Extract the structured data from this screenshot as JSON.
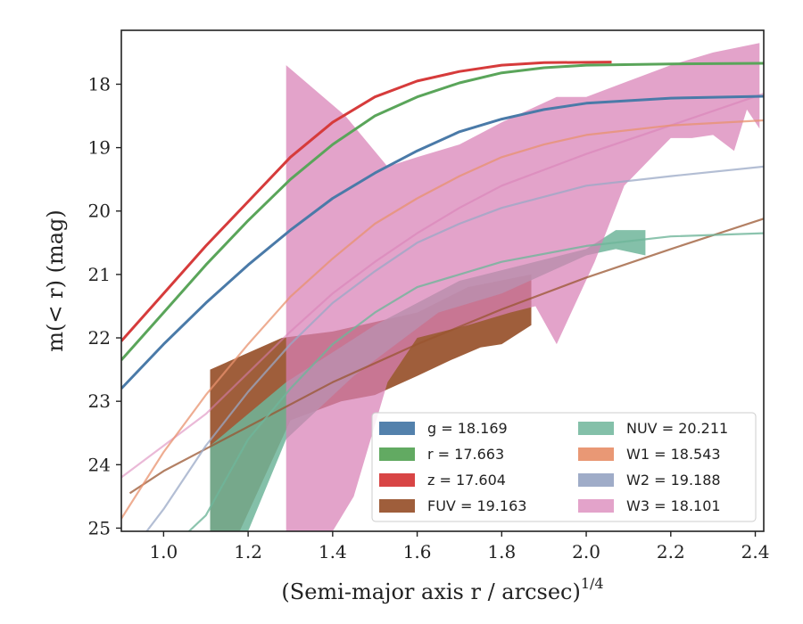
{
  "chart_data": {
    "type": "line",
    "xlabel_main": "(Semi-major axis r / arcsec)",
    "xlabel_sup": "1/4",
    "ylabel": "m(< r) (mag)",
    "xlim": [
      0.9,
      2.42
    ],
    "ylim": [
      25.05,
      17.15
    ],
    "y_inverted": true,
    "grid": false,
    "legend_position": "lower-right",
    "xticks": [
      1.0,
      1.2,
      1.4,
      1.6,
      1.8,
      2.0,
      2.2,
      2.4
    ],
    "xtick_labels": [
      "1.0",
      "1.2",
      "1.4",
      "1.6",
      "1.8",
      "2.0",
      "2.2",
      "2.4"
    ],
    "yticks": [
      18,
      19,
      20,
      21,
      22,
      23,
      24,
      25
    ],
    "ytick_labels": [
      "18",
      "19",
      "20",
      "21",
      "22",
      "23",
      "24",
      "25"
    ],
    "series": [
      {
        "name": "g = 18.169",
        "key": "g",
        "color": "#4a7aa8",
        "curve_opacity": 1.0,
        "curve": [
          [
            0.9,
            22.8
          ],
          [
            1.0,
            22.1
          ],
          [
            1.1,
            21.45
          ],
          [
            1.2,
            20.85
          ],
          [
            1.3,
            20.3
          ],
          [
            1.4,
            19.8
          ],
          [
            1.5,
            19.4
          ],
          [
            1.6,
            19.05
          ],
          [
            1.7,
            18.75
          ],
          [
            1.8,
            18.55
          ],
          [
            1.9,
            18.4
          ],
          [
            2.0,
            18.3
          ],
          [
            2.2,
            18.22
          ],
          [
            2.42,
            18.19
          ]
        ]
      },
      {
        "name": "r = 17.663",
        "key": "r",
        "color": "#5aa55a",
        "curve_opacity": 1.0,
        "curve": [
          [
            0.9,
            22.35
          ],
          [
            1.0,
            21.6
          ],
          [
            1.1,
            20.85
          ],
          [
            1.2,
            20.15
          ],
          [
            1.3,
            19.5
          ],
          [
            1.4,
            18.95
          ],
          [
            1.5,
            18.5
          ],
          [
            1.6,
            18.2
          ],
          [
            1.7,
            17.98
          ],
          [
            1.8,
            17.82
          ],
          [
            1.9,
            17.74
          ],
          [
            2.0,
            17.7
          ],
          [
            2.2,
            17.68
          ],
          [
            2.42,
            17.67
          ]
        ]
      },
      {
        "name": "z = 17.604",
        "key": "z",
        "color": "#d63b3b",
        "curve_opacity": 1.0,
        "curve": [
          [
            0.9,
            22.05
          ],
          [
            1.0,
            21.3
          ],
          [
            1.1,
            20.55
          ],
          [
            1.2,
            19.85
          ],
          [
            1.3,
            19.15
          ],
          [
            1.4,
            18.6
          ],
          [
            1.5,
            18.2
          ],
          [
            1.6,
            17.95
          ],
          [
            1.7,
            17.8
          ],
          [
            1.8,
            17.7
          ],
          [
            1.9,
            17.66
          ],
          [
            2.06,
            17.65
          ]
        ]
      },
      {
        "name": "FUV = 19.163",
        "key": "FUV",
        "color": "#9a5530",
        "curve_opacity": 0.75,
        "band_opacity": 0.95,
        "curve": [
          [
            0.92,
            24.45
          ],
          [
            1.0,
            24.1
          ],
          [
            1.2,
            23.4
          ],
          [
            1.4,
            22.7
          ],
          [
            1.6,
            22.1
          ],
          [
            1.8,
            21.55
          ],
          [
            2.0,
            21.05
          ],
          [
            2.2,
            20.6
          ],
          [
            2.42,
            20.12
          ]
        ],
        "band_upper": [
          [
            1.11,
            22.5
          ],
          [
            1.28,
            22.0
          ],
          [
            1.4,
            21.9
          ],
          [
            1.6,
            21.6
          ],
          [
            1.72,
            21.2
          ],
          [
            1.87,
            21.0
          ]
        ],
        "band_lower": [
          [
            1.87,
            21.8
          ],
          [
            1.8,
            22.1
          ],
          [
            1.75,
            22.15
          ],
          [
            1.68,
            22.35
          ],
          [
            1.6,
            22.6
          ],
          [
            1.5,
            22.9
          ],
          [
            1.42,
            23.0
          ],
          [
            1.3,
            23.3
          ],
          [
            1.18,
            25.05
          ],
          [
            1.11,
            25.05
          ]
        ]
      },
      {
        "name": "NUV = 20.211",
        "key": "NUV",
        "color": "#6fb59a",
        "curve_opacity": 0.8,
        "band_opacity": 0.85,
        "curve": [
          [
            1.06,
            25.05
          ],
          [
            1.1,
            24.8
          ],
          [
            1.2,
            23.6
          ],
          [
            1.3,
            22.8
          ],
          [
            1.4,
            22.1
          ],
          [
            1.5,
            21.6
          ],
          [
            1.6,
            21.2
          ],
          [
            1.8,
            20.8
          ],
          [
            2.0,
            20.55
          ],
          [
            2.2,
            20.4
          ],
          [
            2.42,
            20.35
          ]
        ],
        "band_upper": [
          [
            1.11,
            23.7
          ],
          [
            1.29,
            22.7
          ],
          [
            1.5,
            21.8
          ],
          [
            1.7,
            21.1
          ],
          [
            2.0,
            20.6
          ],
          [
            2.07,
            20.3
          ],
          [
            2.14,
            20.3
          ]
        ],
        "band_lower": [
          [
            2.14,
            20.7
          ],
          [
            2.07,
            20.6
          ],
          [
            2.0,
            20.7
          ],
          [
            1.8,
            21.3
          ],
          [
            1.65,
            21.6
          ],
          [
            1.45,
            22.6
          ],
          [
            1.29,
            23.6
          ],
          [
            1.2,
            25.05
          ],
          [
            1.11,
            25.05
          ]
        ]
      },
      {
        "name": "W1 = 18.543",
        "key": "W1",
        "color": "#e8926e",
        "curve_opacity": 0.75,
        "curve": [
          [
            0.9,
            24.85
          ],
          [
            1.0,
            23.8
          ],
          [
            1.1,
            22.9
          ],
          [
            1.2,
            22.1
          ],
          [
            1.3,
            21.35
          ],
          [
            1.4,
            20.75
          ],
          [
            1.5,
            20.2
          ],
          [
            1.6,
            19.8
          ],
          [
            1.7,
            19.45
          ],
          [
            1.8,
            19.15
          ],
          [
            1.9,
            18.95
          ],
          [
            2.0,
            18.8
          ],
          [
            2.2,
            18.65
          ],
          [
            2.42,
            18.57
          ]
        ]
      },
      {
        "name": "W2 = 19.188",
        "key": "W2",
        "color": "#9aa8c5",
        "curve_opacity": 0.75,
        "curve": [
          [
            0.96,
            25.05
          ],
          [
            1.0,
            24.7
          ],
          [
            1.1,
            23.7
          ],
          [
            1.2,
            22.85
          ],
          [
            1.3,
            22.1
          ],
          [
            1.4,
            21.45
          ],
          [
            1.5,
            20.95
          ],
          [
            1.6,
            20.5
          ],
          [
            1.7,
            20.2
          ],
          [
            1.8,
            19.95
          ],
          [
            2.0,
            19.6
          ],
          [
            2.2,
            19.45
          ],
          [
            2.42,
            19.3
          ]
        ]
      },
      {
        "name": "W3 = 18.101",
        "key": "W3",
        "color": "#d880b6",
        "curve_opacity": 0.55,
        "band_opacity": 0.72,
        "curve": [
          [
            0.9,
            24.2
          ],
          [
            1.0,
            23.7
          ],
          [
            1.1,
            23.2
          ],
          [
            1.2,
            22.55
          ],
          [
            1.3,
            21.9
          ],
          [
            1.4,
            21.3
          ],
          [
            1.5,
            20.8
          ],
          [
            1.6,
            20.35
          ],
          [
            1.7,
            19.95
          ],
          [
            1.8,
            19.6
          ],
          [
            2.0,
            19.1
          ],
          [
            2.2,
            18.65
          ],
          [
            2.42,
            18.15
          ]
        ],
        "band_upper": [
          [
            1.29,
            17.7
          ],
          [
            1.43,
            18.5
          ],
          [
            1.53,
            19.3
          ],
          [
            1.6,
            19.15
          ],
          [
            1.7,
            18.95
          ],
          [
            1.8,
            18.6
          ],
          [
            1.93,
            18.2
          ],
          [
            2.0,
            18.2
          ],
          [
            2.1,
            17.95
          ],
          [
            2.2,
            17.7
          ],
          [
            2.3,
            17.5
          ],
          [
            2.41,
            17.35
          ]
        ],
        "band_lower": [
          [
            2.41,
            18.7
          ],
          [
            2.38,
            18.4
          ],
          [
            2.35,
            19.05
          ],
          [
            2.3,
            18.8
          ],
          [
            2.25,
            18.85
          ],
          [
            2.2,
            18.85
          ],
          [
            2.17,
            19.05
          ],
          [
            2.09,
            19.6
          ],
          [
            2.02,
            20.8
          ],
          [
            1.93,
            22.1
          ],
          [
            1.88,
            21.5
          ],
          [
            1.82,
            21.6
          ],
          [
            1.72,
            21.8
          ],
          [
            1.6,
            22.0
          ],
          [
            1.53,
            22.7
          ],
          [
            1.45,
            24.5
          ],
          [
            1.4,
            25.05
          ],
          [
            1.29,
            25.05
          ]
        ]
      }
    ]
  }
}
